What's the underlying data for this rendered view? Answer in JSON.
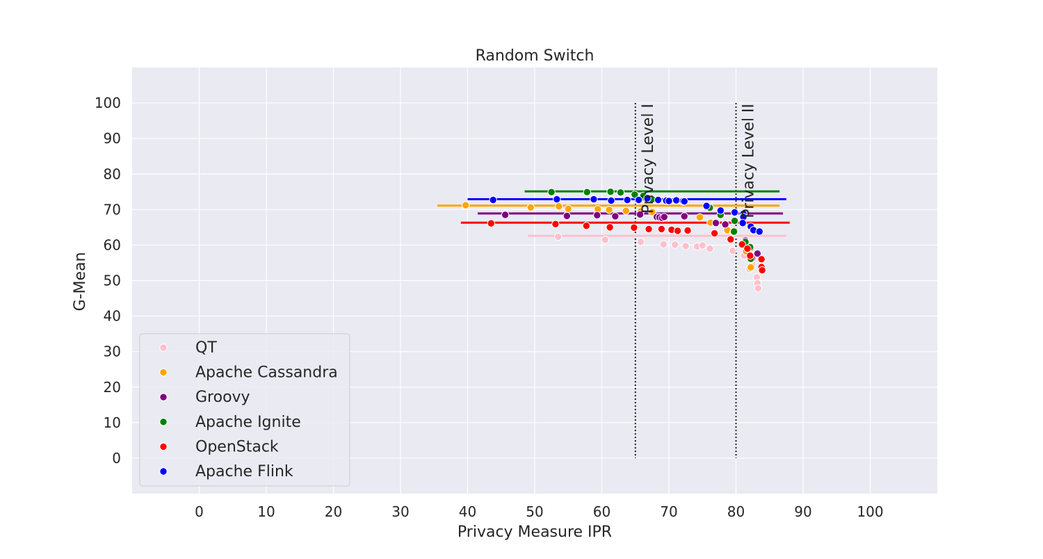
{
  "chart_data": {
    "type": "scatter",
    "title": "Random Switch",
    "xlabel": "Privacy Measure IPR",
    "ylabel": "G-Mean",
    "xlim": [
      -10,
      110
    ],
    "ylim": [
      -10,
      110
    ],
    "xticks": [
      "0",
      "10",
      "20",
      "30",
      "40",
      "50",
      "60",
      "70",
      "80",
      "90",
      "100"
    ],
    "yticks": [
      "0",
      "10",
      "20",
      "30",
      "40",
      "50",
      "60",
      "70",
      "80",
      "90",
      "100"
    ],
    "grid": true,
    "background": "#EAEAF2",
    "legend_position": "lower-left",
    "vlines": [
      {
        "x": 65,
        "y_from": 0,
        "y_to": 100,
        "label": "Privacy Level I"
      },
      {
        "x": 80,
        "y_from": 0,
        "y_to": 100,
        "label": "Privacy Level II"
      }
    ],
    "series": [
      {
        "name": "QT",
        "color": "#FFC0CB",
        "hline": {
          "y": 62.6,
          "x_from": 49,
          "x_to": 87.5
        },
        "points": [
          [
            53.5,
            62.3
          ],
          [
            60.5,
            61.5
          ],
          [
            65.8,
            60.9
          ],
          [
            69.2,
            60.2
          ],
          [
            70.9,
            60.1
          ],
          [
            72.5,
            59.7
          ],
          [
            74.2,
            59.6
          ],
          [
            75,
            59.9
          ],
          [
            76.1,
            59
          ],
          [
            79.5,
            58.4
          ],
          [
            81.2,
            57
          ],
          [
            82,
            53.2
          ],
          [
            82.4,
            54.7
          ],
          [
            83.1,
            50.9
          ],
          [
            83.2,
            49.2
          ],
          [
            83.3,
            47.8
          ]
        ]
      },
      {
        "name": "Apache Cassandra",
        "color": "#FFA500",
        "hline": {
          "y": 71.1,
          "x_from": 35.5,
          "x_to": 86.5
        },
        "points": [
          [
            39.7,
            71.2
          ],
          [
            49.4,
            70.6
          ],
          [
            53.6,
            70.9
          ],
          [
            55,
            70.2
          ],
          [
            59.4,
            70.1
          ],
          [
            61.1,
            69.9
          ],
          [
            63.6,
            69.6
          ],
          [
            65.8,
            69.5
          ],
          [
            67.5,
            69.3
          ],
          [
            74.6,
            67.8
          ],
          [
            76.2,
            66.3
          ],
          [
            78.7,
            64.2
          ],
          [
            79.6,
            63.6
          ],
          [
            81.5,
            58.2
          ],
          [
            82.3,
            55.9
          ],
          [
            82.2,
            53.7
          ]
        ]
      },
      {
        "name": "Groovy",
        "color": "#800080",
        "hline": {
          "y": 68.9,
          "x_from": 41.5,
          "x_to": 87
        },
        "points": [
          [
            45.6,
            68.5
          ],
          [
            54.8,
            68.2
          ],
          [
            59.3,
            68.4
          ],
          [
            62,
            68.1
          ],
          [
            65.7,
            68.6
          ],
          [
            68.2,
            67.9
          ],
          [
            68.6,
            67.8
          ],
          [
            69,
            67.6
          ],
          [
            69.3,
            67.9
          ],
          [
            72.3,
            68.1
          ],
          [
            77,
            66.2
          ],
          [
            78.4,
            65.8
          ],
          [
            81.4,
            61.3
          ],
          [
            82.2,
            59.2
          ],
          [
            83.2,
            57.6
          ],
          [
            82.4,
            56.2
          ]
        ]
      },
      {
        "name": "Apache Ignite",
        "color": "#008000",
        "hline": {
          "y": 75.1,
          "x_from": 48.5,
          "x_to": 86.5
        },
        "points": [
          [
            52.5,
            74.9
          ],
          [
            57.8,
            74.9
          ],
          [
            61.3,
            75
          ],
          [
            62.8,
            74.8
          ],
          [
            64.9,
            74.2
          ],
          [
            66.2,
            73.9
          ],
          [
            67.5,
            72.9
          ],
          [
            69.9,
            72.4
          ],
          [
            72.1,
            72.2
          ],
          [
            76.1,
            70.5
          ],
          [
            77.7,
            68.5
          ],
          [
            79.8,
            66.8
          ],
          [
            79.7,
            63.8
          ],
          [
            81.4,
            60.9
          ],
          [
            82.1,
            59.4
          ],
          [
            82.2,
            56.1
          ]
        ]
      },
      {
        "name": "OpenStack",
        "color": "#FF0000",
        "hline": {
          "y": 66.3,
          "x_from": 39,
          "x_to": 88
        },
        "points": [
          [
            43.5,
            66.1
          ],
          [
            53.1,
            65.9
          ],
          [
            57.7,
            65.4
          ],
          [
            61.2,
            65
          ],
          [
            64.8,
            64.9
          ],
          [
            67,
            64.5
          ],
          [
            68.9,
            64.5
          ],
          [
            70.4,
            64.3
          ],
          [
            71.3,
            64
          ],
          [
            72.8,
            64.1
          ],
          [
            76.8,
            63.3
          ],
          [
            79.2,
            61.6
          ],
          [
            80.9,
            60.2
          ],
          [
            81.7,
            59
          ],
          [
            82.1,
            57
          ],
          [
            83.8,
            56
          ],
          [
            83.8,
            53.8
          ],
          [
            83.9,
            52.9
          ]
        ]
      },
      {
        "name": "Apache Flink",
        "color": "#0000FF",
        "hline": {
          "y": 72.9,
          "x_from": 40,
          "x_to": 87.5
        },
        "points": [
          [
            43.8,
            72.7
          ],
          [
            53.3,
            72.9
          ],
          [
            58.8,
            72.9
          ],
          [
            61.4,
            72.5
          ],
          [
            63.8,
            72.7
          ],
          [
            65.5,
            72.7
          ],
          [
            66.8,
            73.2
          ],
          [
            68.4,
            72.7
          ],
          [
            69.6,
            72.5
          ],
          [
            70,
            72.4
          ],
          [
            71.1,
            72.6
          ],
          [
            72.1,
            72.4
          ],
          [
            72.3,
            72.3
          ],
          [
            75.6,
            71
          ],
          [
            77.7,
            69.7
          ],
          [
            79.8,
            69.2
          ],
          [
            81.1,
            68.8
          ],
          [
            81.1,
            67.9
          ],
          [
            81,
            66.2
          ],
          [
            82.2,
            65.2
          ],
          [
            82.6,
            64.2
          ],
          [
            83.5,
            63.8
          ]
        ]
      }
    ]
  }
}
